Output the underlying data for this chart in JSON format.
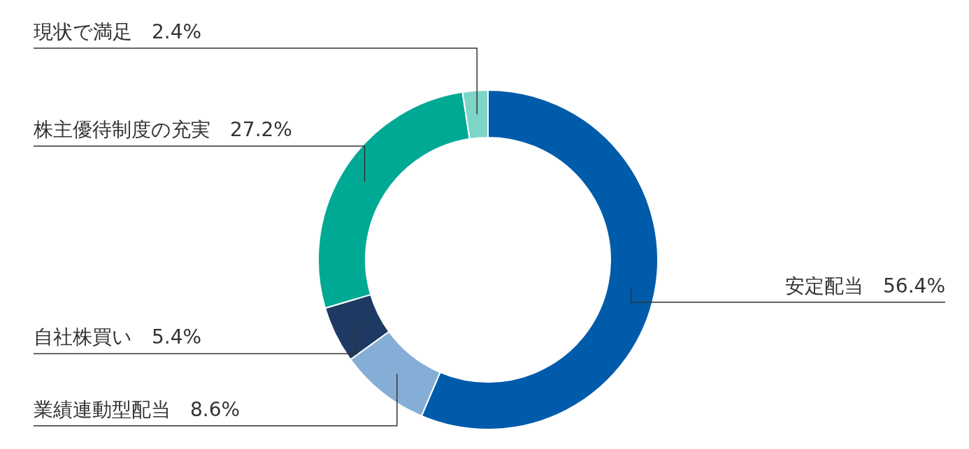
{
  "chart_data": {
    "type": "donut",
    "categories": [
      "安定配当",
      "業績連動型配当",
      "自社株買い",
      "株主優待制度の充実",
      "現状で満足"
    ],
    "values": [
      56.4,
      8.6,
      5.4,
      27.2,
      2.4
    ],
    "value_labels": [
      "56.4%",
      "8.6%",
      "5.4%",
      "27.2%",
      "2.4%"
    ],
    "colors": [
      "#005bab",
      "#85aed6",
      "#1e3a63",
      "#00a994",
      "#7fd4c8"
    ]
  }
}
